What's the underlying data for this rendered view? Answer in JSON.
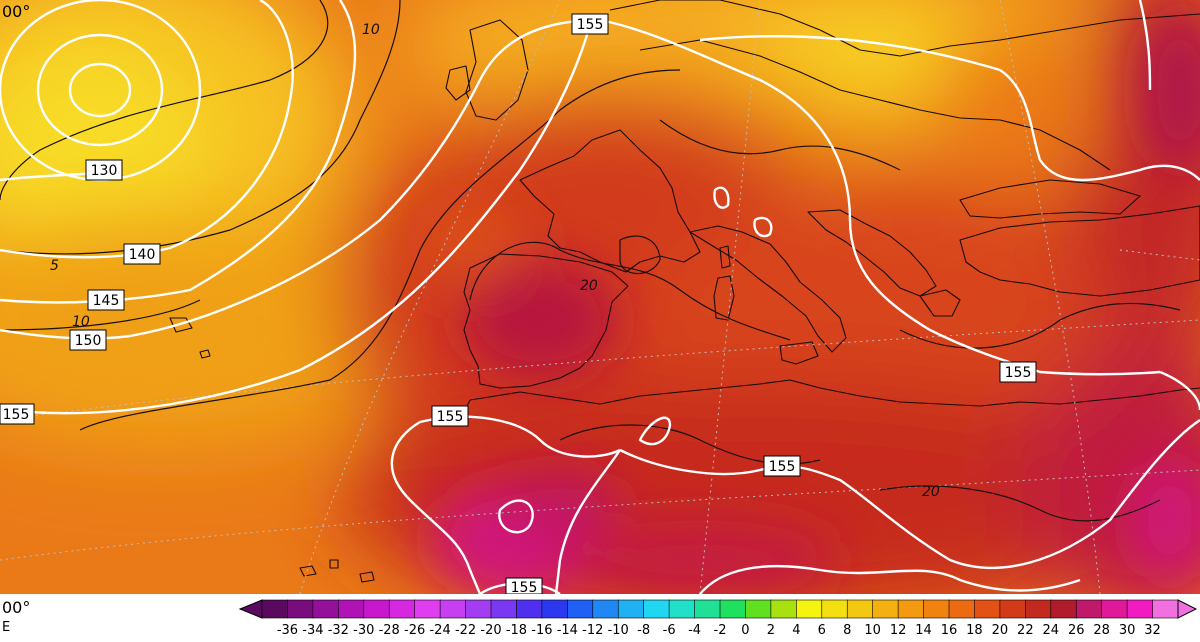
{
  "map": {
    "corner_labels": [
      "00°",
      "E"
    ],
    "contour_labels_white": [
      "155",
      "130",
      "140",
      "145",
      "150",
      "155",
      "155",
      "155",
      "155",
      "155"
    ],
    "contour_labels_black": [
      "10",
      "5",
      "10",
      "20",
      "20"
    ]
  },
  "legend": {
    "tick_labels": [
      "-36",
      "-34",
      "-32",
      "-30",
      "-28",
      "-26",
      "-24",
      "-22",
      "-20",
      "-18",
      "-16",
      "-14",
      "-12",
      "-10",
      "-8",
      "-6",
      "-4",
      "-2",
      "0",
      "2",
      "4",
      "6",
      "8",
      "10",
      "12",
      "14",
      "16",
      "18",
      "20",
      "22",
      "24",
      "26",
      "28",
      "30",
      "32"
    ],
    "colors": [
      "#5a0a5e",
      "#7a0c7e",
      "#95109a",
      "#b012b6",
      "#c818ce",
      "#d628e0",
      "#e03cf0",
      "#c640f2",
      "#a43cf2",
      "#7a38f0",
      "#5030ee",
      "#2c38f0",
      "#2060f4",
      "#2088f4",
      "#20b0f4",
      "#20d6f0",
      "#20e0c8",
      "#20e098",
      "#20e060",
      "#60e020",
      "#a8e010",
      "#f4f410",
      "#f4e010",
      "#f4c810",
      "#f4b010",
      "#f49a10",
      "#f08210",
      "#ec6a10",
      "#e25214",
      "#d23a18",
      "#c22a20",
      "#b01c2c",
      "#c0186a",
      "#e0189a",
      "#f01cc2",
      "#f070e0"
    ]
  }
}
